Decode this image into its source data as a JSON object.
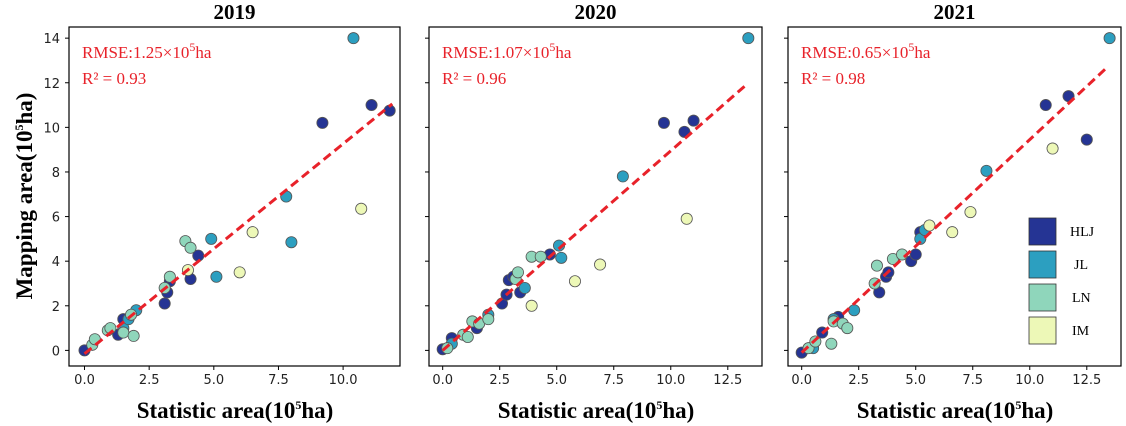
{
  "figure": {
    "ylabel": "Mapping area(10",
    "ylabel_unit": "ha)",
    "xlabel": "Statistic area(10",
    "xlabel_unit": "ha)",
    "exp": "5"
  },
  "legend": [
    {
      "label": "HLJ",
      "color": "#253494"
    },
    {
      "label": "JL",
      "color": "#2c9fc0"
    },
    {
      "label": "LN",
      "color": "#8fd6bb"
    },
    {
      "label": "IM",
      "color": "#edf8b7"
    }
  ],
  "fit_color": "#e8222a",
  "chart_data": [
    {
      "type": "scatter",
      "title": "2019",
      "rmse_label": "RMSE:1.25×10",
      "rmse_exp": "5",
      "rmse_unit": "ha",
      "r2_label": "R² = 0.93",
      "xlim": [
        -0.6,
        12.2
      ],
      "ylim": [
        -0.7,
        14.5
      ],
      "xticks": [
        0.0,
        2.5,
        5.0,
        7.5,
        10.0
      ],
      "xtick_labels": [
        "0.0",
        "2.5",
        "5.0",
        "7.5",
        "10.0"
      ],
      "yticks": [
        0,
        2,
        4,
        6,
        8,
        10,
        12,
        14
      ],
      "ytick_labels": [
        "0",
        "2",
        "4",
        "6",
        "8",
        "10",
        "12",
        "14"
      ],
      "fit": [
        [
          0.0,
          -0.15
        ],
        [
          11.9,
          11.05
        ]
      ],
      "series": [
        {
          "name": "HLJ",
          "points": [
            [
              0.0,
              0.0
            ],
            [
              1.3,
              0.7
            ],
            [
              1.5,
              1.4
            ],
            [
              3.1,
              2.1
            ],
            [
              3.2,
              2.6
            ],
            [
              3.3,
              3.1
            ],
            [
              4.1,
              3.2
            ],
            [
              4.4,
              4.25
            ],
            [
              9.2,
              10.2
            ],
            [
              11.1,
              11.0
            ],
            [
              11.8,
              10.75
            ]
          ]
        },
        {
          "name": "JL",
          "points": [
            [
              1.5,
              1.0
            ],
            [
              1.7,
              1.4
            ],
            [
              2.0,
              1.8
            ],
            [
              4.9,
              5.0
            ],
            [
              5.1,
              3.3
            ],
            [
              7.8,
              6.9
            ],
            [
              8.0,
              4.85
            ],
            [
              10.4,
              14.0
            ]
          ]
        },
        {
          "name": "LN",
          "points": [
            [
              0.3,
              0.25
            ],
            [
              0.4,
              0.5
            ],
            [
              0.9,
              0.9
            ],
            [
              1.0,
              1.0
            ],
            [
              1.5,
              0.8
            ],
            [
              1.9,
              0.65
            ],
            [
              1.8,
              1.6
            ],
            [
              3.1,
              2.8
            ],
            [
              3.3,
              3.3
            ],
            [
              3.9,
              4.9
            ],
            [
              4.1,
              4.6
            ]
          ]
        },
        {
          "name": "IM",
          "points": [
            [
              4.0,
              3.6
            ],
            [
              6.0,
              3.5
            ],
            [
              6.5,
              5.3
            ],
            [
              10.7,
              6.35
            ]
          ]
        }
      ]
    },
    {
      "type": "scatter",
      "title": "2020",
      "rmse_label": "RMSE:1.07×10",
      "rmse_exp": "5",
      "rmse_unit": "ha",
      "r2_label": "R² = 0.96",
      "xlim": [
        -0.6,
        14.0
      ],
      "ylim": [
        -0.7,
        14.5
      ],
      "xticks": [
        0.0,
        2.5,
        5.0,
        7.5,
        10.0,
        12.5
      ],
      "xtick_labels": [
        "0.0",
        "2.5",
        "5.0",
        "7.5",
        "10.0",
        "12.5"
      ],
      "yticks": [
        0,
        2,
        4,
        6,
        8,
        10,
        12,
        14
      ],
      "ytick_labels": [
        "0",
        "2",
        "4",
        "6",
        "8",
        "10",
        "12",
        "14"
      ],
      "fit": [
        [
          0.0,
          0.0
        ],
        [
          13.3,
          11.9
        ]
      ],
      "series": [
        {
          "name": "HLJ",
          "points": [
            [
              0.0,
              0.05
            ],
            [
              0.4,
              0.55
            ],
            [
              1.5,
              1.0
            ],
            [
              2.6,
              2.1
            ],
            [
              2.8,
              2.5
            ],
            [
              2.9,
              3.15
            ],
            [
              3.1,
              3.3
            ],
            [
              3.4,
              2.6
            ],
            [
              4.7,
              4.3
            ],
            [
              9.7,
              10.2
            ],
            [
              10.6,
              9.8
            ],
            [
              11.0,
              10.3
            ]
          ]
        },
        {
          "name": "JL",
          "points": [
            [
              0.4,
              0.3
            ],
            [
              2.0,
              1.6
            ],
            [
              3.6,
              2.8
            ],
            [
              5.1,
              4.7
            ],
            [
              5.2,
              4.15
            ],
            [
              7.9,
              7.8
            ],
            [
              13.4,
              14.0
            ]
          ]
        },
        {
          "name": "LN",
          "points": [
            [
              0.2,
              0.1
            ],
            [
              0.9,
              0.7
            ],
            [
              1.1,
              0.6
            ],
            [
              1.3,
              1.3
            ],
            [
              1.6,
              1.2
            ],
            [
              2.0,
              1.4
            ],
            [
              3.2,
              3.2
            ],
            [
              3.3,
              3.5
            ],
            [
              3.9,
              4.2
            ],
            [
              4.3,
              4.2
            ]
          ]
        },
        {
          "name": "IM",
          "points": [
            [
              3.9,
              2.0
            ],
            [
              5.8,
              3.1
            ],
            [
              6.9,
              3.85
            ],
            [
              10.7,
              5.9
            ]
          ]
        }
      ]
    },
    {
      "type": "scatter",
      "title": "2021",
      "rmse_label": "RMSE:0.65×10",
      "rmse_exp": "5",
      "rmse_unit": "ha",
      "r2_label": "R² = 0.98",
      "xlim": [
        -0.6,
        14.0
      ],
      "ylim": [
        -0.7,
        14.5
      ],
      "xticks": [
        0.0,
        2.5,
        5.0,
        7.5,
        10.0,
        12.5
      ],
      "xtick_labels": [
        "0.0",
        "2.5",
        "5.0",
        "7.5",
        "10.0",
        "12.5"
      ],
      "yticks": [
        0,
        2,
        4,
        6,
        8,
        10,
        12,
        14
      ],
      "ytick_labels": [
        "0",
        "2",
        "4",
        "6",
        "8",
        "10",
        "12",
        "14"
      ],
      "fit": [
        [
          0.0,
          -0.1
        ],
        [
          13.4,
          12.7
        ]
      ],
      "series": [
        {
          "name": "HLJ",
          "points": [
            [
              0.0,
              -0.1
            ],
            [
              0.9,
              0.8
            ],
            [
              1.6,
              1.5
            ],
            [
              3.4,
              2.6
            ],
            [
              3.7,
              3.3
            ],
            [
              3.8,
              3.5
            ],
            [
              4.8,
              4.0
            ],
            [
              5.0,
              4.3
            ],
            [
              5.2,
              5.3
            ],
            [
              10.7,
              11.0
            ],
            [
              11.7,
              11.4
            ],
            [
              12.5,
              9.45
            ]
          ]
        },
        {
          "name": "JL",
          "points": [
            [
              0.5,
              0.1
            ],
            [
              1.4,
              1.4
            ],
            [
              2.3,
              1.8
            ],
            [
              5.2,
              5.0
            ],
            [
              5.4,
              5.4
            ],
            [
              8.1,
              8.05
            ],
            [
              13.5,
              14.0
            ]
          ]
        },
        {
          "name": "LN",
          "points": [
            [
              0.3,
              0.1
            ],
            [
              0.6,
              0.4
            ],
            [
              1.3,
              0.3
            ],
            [
              1.4,
              1.3
            ],
            [
              1.8,
              1.2
            ],
            [
              2.0,
              1.0
            ],
            [
              3.2,
              3.0
            ],
            [
              3.3,
              3.8
            ],
            [
              4.0,
              4.1
            ],
            [
              4.4,
              4.3
            ]
          ]
        },
        {
          "name": "IM",
          "points": [
            [
              5.6,
              5.6
            ],
            [
              6.6,
              5.3
            ],
            [
              7.4,
              6.2
            ],
            [
              11.0,
              9.05
            ]
          ]
        }
      ]
    }
  ]
}
